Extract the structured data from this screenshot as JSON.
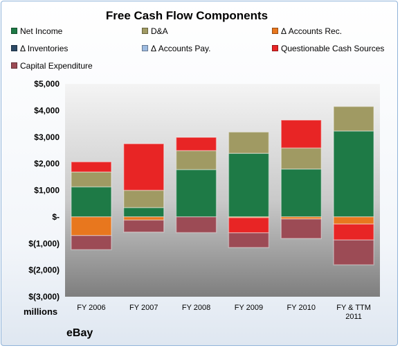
{
  "chart_data": {
    "type": "bar",
    "stacked": true,
    "title": "Free Cash Flow Components",
    "units": "millions",
    "company": "eBay",
    "categories": [
      "FY 2006",
      "FY 2007",
      "FY 2008",
      "FY 2009",
      "FY 2010",
      "FY & TTM 2011"
    ],
    "ylim": [
      -3000,
      5000
    ],
    "yticks": [
      5000,
      4000,
      3000,
      2000,
      1000,
      0,
      -1000,
      -2000,
      -3000
    ],
    "ytick_labels": [
      "$5,000",
      "$4,000",
      "$3,000",
      "$2,000",
      "$1,000",
      "$-",
      "$(1,000)",
      "$(2,000)",
      "$(3,000)"
    ],
    "legend_position": "top",
    "grid": false,
    "series": [
      {
        "name": "Net Income",
        "color": "#1e7a46",
        "values": [
          1130,
          350,
          1780,
          2390,
          1800,
          3230
        ]
      },
      {
        "name": "D&A",
        "color": "#a09a63",
        "values": [
          560,
          650,
          710,
          800,
          790,
          920
        ]
      },
      {
        "name": "Δ Accounts Rec.",
        "color": "#e8771e",
        "values": [
          -700,
          -120,
          0,
          -30,
          -80,
          -270
        ]
      },
      {
        "name": "Δ Inventories",
        "color": "#2c4a66",
        "values": [
          0,
          0,
          0,
          0,
          0,
          0
        ]
      },
      {
        "name": "Δ Accounts Pay.",
        "color": "#9dbbe0",
        "values": [
          0,
          0,
          0,
          0,
          0,
          0
        ]
      },
      {
        "name": "Questionable Cash Sources",
        "color": "#e82525",
        "values": [
          380,
          1750,
          500,
          -570,
          1050,
          -600
        ]
      },
      {
        "name": "Capital Expenditure",
        "color": "#9c4b55",
        "values": [
          -530,
          -450,
          -590,
          -550,
          -730,
          -930
        ]
      }
    ]
  }
}
